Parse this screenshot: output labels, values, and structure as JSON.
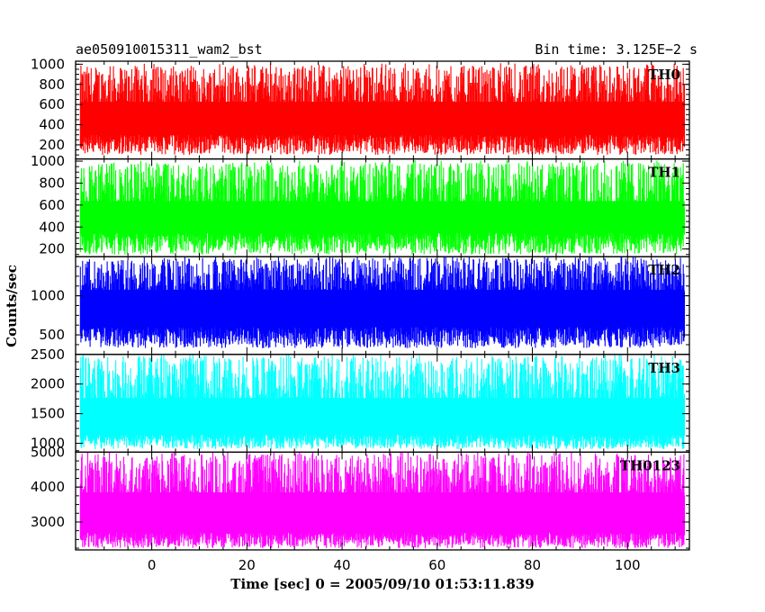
{
  "header": {
    "title": "ae050910015311_wam2_bst",
    "bin_time": "Bin time: 3.125E−2 s"
  },
  "chart_data": {
    "type": "line",
    "title": "ae050910015311_wam2_bst",
    "xlabel": "Time [sec] 0 = 2005/09/10 01:53:11.839",
    "ylabel": "Counts/sec",
    "xlim": [
      -16,
      113
    ],
    "x_ticks": [
      0,
      20,
      40,
      60,
      80,
      100
    ],
    "x_start": -15,
    "x_end": 112,
    "grid": false,
    "panels": [
      {
        "name": "TH0",
        "color": "#ff0000",
        "ylim": [
          60,
          1030
        ],
        "y_ticks": [
          200,
          400,
          600,
          800,
          1000
        ],
        "base": 300,
        "upper_mean": 700,
        "upper_max": 1000,
        "lower_min": 100
      },
      {
        "name": "TH1",
        "color": "#00ff00",
        "ylim": [
          130,
          1020
        ],
        "y_ticks": [
          200,
          400,
          600,
          800,
          1000
        ],
        "base": 350,
        "upper_mean": 700,
        "upper_max": 1000,
        "lower_min": 150
      },
      {
        "name": "TH2",
        "color": "#0000ff",
        "ylim": [
          250,
          1500
        ],
        "y_ticks": [
          500,
          1000
        ],
        "base": 600,
        "upper_mean": 1180,
        "upper_max": 1500,
        "lower_min": 330
      },
      {
        "name": "TH3",
        "color": "#00ffff",
        "ylim": [
          850,
          2500
        ],
        "y_ticks": [
          1000,
          1500,
          2000,
          2500
        ],
        "base": 1150,
        "upper_mean": 1900,
        "upper_max": 2500,
        "lower_min": 900
      },
      {
        "name": "TH0123",
        "color": "#ff00ff",
        "ylim": [
          2200,
          5000
        ],
        "y_ticks": [
          3000,
          4000,
          5000
        ],
        "base": 2700,
        "upper_mean": 4100,
        "upper_max": 5000,
        "lower_min": 2250
      }
    ]
  }
}
